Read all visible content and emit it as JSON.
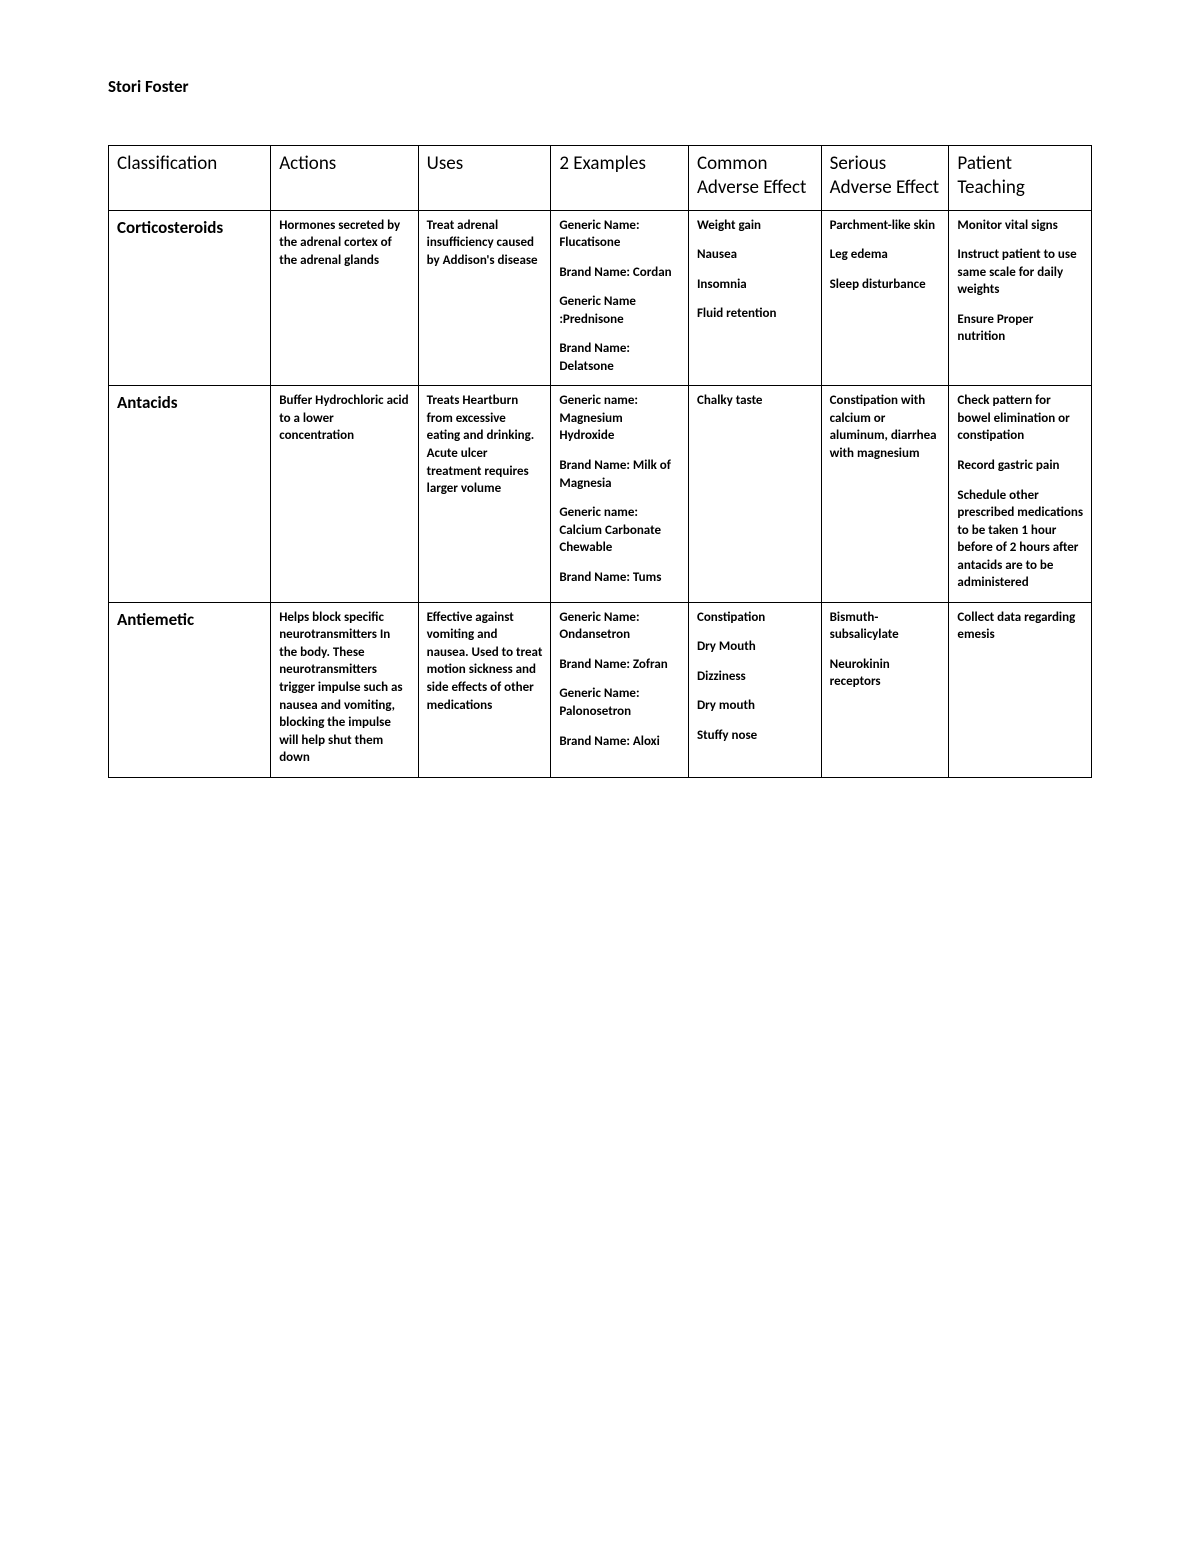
{
  "author": "Stori Foster",
  "columns": [
    "Classification",
    "Actions",
    "Uses",
    "2 Examples",
    "Common Adverse Effect",
    "Serious Adverse Effect",
    "Patient Teaching"
  ],
  "rows": [
    {
      "classification": "Corticosteroids",
      "actions": [
        "Hormones secreted by the adrenal cortex of the adrenal glands"
      ],
      "uses": [
        "Treat adrenal insufficiency caused by Addison's disease"
      ],
      "examples": [
        "Generic Name: Flucatisone",
        "Brand Name: Cordan",
        "Generic Name :Prednisone",
        "Brand Name: Delatsone"
      ],
      "common": [
        "Weight gain",
        "Nausea",
        "Insomnia",
        "Fluid retention"
      ],
      "serious": [
        "Parchment-like skin",
        "Leg edema",
        "Sleep disturbance"
      ],
      "teaching": [
        "Monitor vital signs",
        "Instruct patient to use same scale for daily weights",
        "Ensure Proper nutrition"
      ]
    },
    {
      "classification": "Antacids",
      "actions": [
        "Buffer Hydrochloric acid to a lower concentration"
      ],
      "uses": [
        "Treats Heartburn from excessive eating and drinking. Acute ulcer treatment requires larger volume"
      ],
      "examples": [
        "Generic name: Magnesium Hydroxide",
        "Brand Name: Milk of Magnesia",
        "Generic name: Calcium Carbonate Chewable",
        "Brand Name: Tums"
      ],
      "common": [
        "Chalky taste"
      ],
      "serious": [
        "Constipation with calcium or aluminum, diarrhea with magnesium"
      ],
      "teaching": [
        "Check pattern for bowel elimination or constipation",
        "Record gastric pain",
        "Schedule other prescribed medications to be taken 1 hour before of 2 hours after antacids are to be administered"
      ]
    },
    {
      "classification": "Antiemetic",
      "actions": [
        "Helps block specific neurotransmitters In the body. These neurotransmitters trigger impulse such as nausea and vomiting, blocking the impulse will help shut them down"
      ],
      "uses": [
        "Effective against vomiting and nausea. Used to treat motion sickness and side effects of other medications"
      ],
      "examples": [
        "Generic Name: Ondansetron",
        "Brand Name: Zofran",
        "Generic Name: Palonosetron",
        "Brand Name: Aloxi"
      ],
      "common": [
        "Constipation",
        "Dry Mouth",
        "Dizziness",
        "Dry mouth",
        "Stuffy nose"
      ],
      "serious": [
        "Bismuth-subsalicylate",
        "Neurokinin receptors"
      ],
      "teaching": [
        "Collect data regarding emesis"
      ]
    }
  ]
}
